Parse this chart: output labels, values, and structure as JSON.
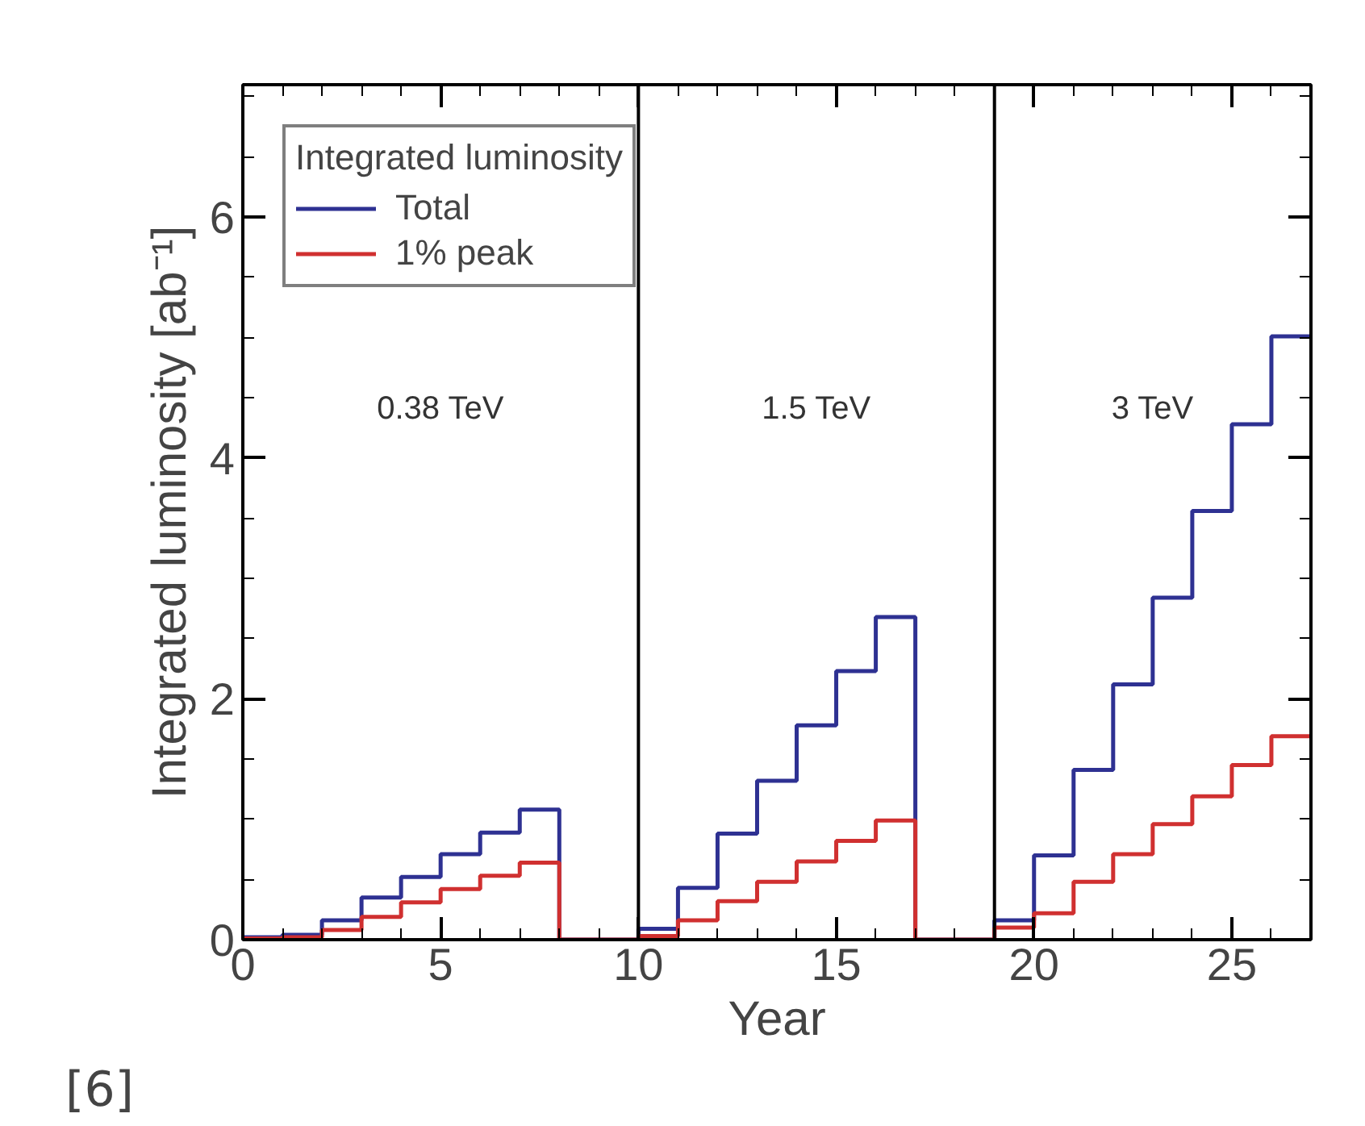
{
  "chart_data": {
    "type": "step",
    "xlabel": "Year",
    "ylabel": "Integrated luminosity [ab⁻¹]",
    "legend_title": "Integrated luminosity",
    "x": [
      0,
      1,
      2,
      3,
      4,
      5,
      6,
      7,
      8,
      9,
      10,
      11,
      12,
      13,
      14,
      15,
      16,
      17,
      18,
      19,
      20,
      21,
      22,
      23,
      24,
      25,
      26,
      27
    ],
    "series": [
      {
        "name": "Total",
        "color": "#2e3192",
        "values": [
          0.02,
          0.04,
          0.16,
          0.35,
          0.52,
          0.71,
          0.89,
          1.08,
          0,
          0,
          0.09,
          0.43,
          0.88,
          1.32,
          1.78,
          2.23,
          2.68,
          0,
          0,
          0.16,
          0.7,
          1.41,
          2.12,
          2.84,
          3.56,
          4.28,
          5.01,
          5.01
        ]
      },
      {
        "name": "1% peak",
        "color": "#d03030",
        "values": [
          0.01,
          0.02,
          0.08,
          0.19,
          0.31,
          0.42,
          0.53,
          0.64,
          0,
          0,
          0.03,
          0.16,
          0.32,
          0.48,
          0.65,
          0.82,
          0.99,
          0,
          0,
          0.1,
          0.22,
          0.48,
          0.71,
          0.96,
          1.19,
          1.45,
          1.69,
          1.69
        ]
      }
    ],
    "xlim": [
      0,
      27
    ],
    "ylim": [
      0,
      7.1
    ],
    "xticks": [
      0,
      5,
      10,
      15,
      20,
      25
    ],
    "yticks": [
      0,
      2,
      4,
      6
    ],
    "ref_lines": [
      {
        "axis": "x",
        "value": 10,
        "color": "#000000"
      },
      {
        "axis": "x",
        "value": 19,
        "color": "#000000"
      }
    ],
    "annotations": [
      "0.38 TeV",
      "1.5 TeV",
      "3 TeV",
      "[6]"
    ],
    "legend": "top left",
    "grid": false,
    "line_style": "solid"
  }
}
